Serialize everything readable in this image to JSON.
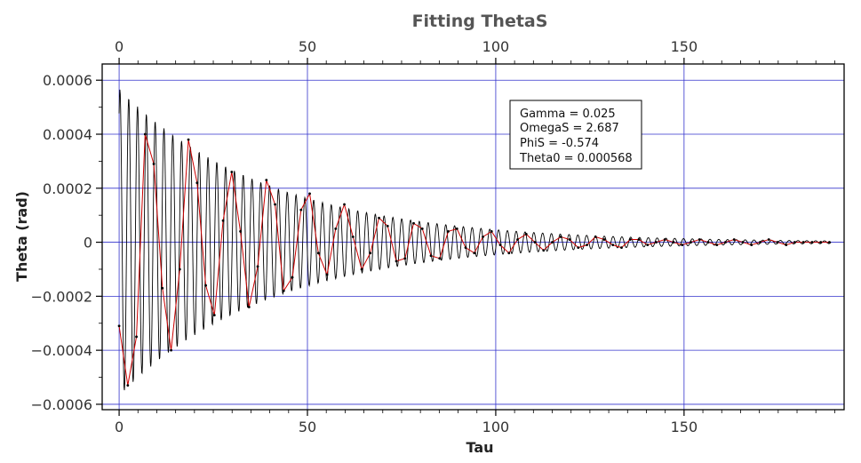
{
  "chart_data": {
    "type": "line",
    "title": "Fitting ThetaS",
    "xlabel": "Tau",
    "ylabel": "Theta (rad)",
    "xlim": [
      -4.5,
      192.5
    ],
    "ylim": [
      -0.00062,
      0.00066
    ],
    "x_ticks": [
      0,
      50,
      100,
      150
    ],
    "x_tick_labels": [
      "0",
      "50",
      "100",
      "150"
    ],
    "y_ticks": [
      -0.0006,
      -0.0004,
      -0.0002,
      0,
      0.0002,
      0.0004,
      0.0006
    ],
    "y_tick_labels": [
      "−0.0006",
      "−0.0004",
      "−0.0002",
      "0",
      "0.0002",
      "0.0004",
      "0.0006"
    ],
    "grid": true,
    "legend_position": "top-right",
    "annotation_lines": [
      "Gamma = 0.025",
      "OmegaS = 2.687",
      "PhiS = -0.574",
      "Theta0 = 0.000568"
    ],
    "fit_params": {
      "gamma": 0.025,
      "omega": 2.687,
      "phi": -0.574,
      "theta0": 0.000568,
      "x_start": 0,
      "x_end": 189
    },
    "series": [
      {
        "role": "fit",
        "color": "#000000",
        "sample_step": 0.1
      },
      {
        "role": "data",
        "color": "#cc0000",
        "x": [
          0,
          2.3,
          4.6,
          6.9,
          9.2,
          11.5,
          13.8,
          16.1,
          18.4,
          20.7,
          23,
          25.3,
          27.6,
          29.9,
          32.2,
          34.5,
          36.8,
          39.1,
          41.4,
          43.7,
          46,
          48.3,
          50.6,
          52.9,
          55.2,
          57.5,
          59.8,
          62.1,
          64.4,
          66.7,
          69,
          71.3,
          73.6,
          75.9,
          78.2,
          80.5,
          82.8,
          85.1,
          87.4,
          89.7,
          92,
          94.3,
          96.6,
          98.9,
          101.2,
          103.5,
          105.8,
          108.1,
          110.4,
          112.7,
          115,
          117.3,
          119.6,
          121.9,
          124.2,
          126.5,
          128.8,
          131.1,
          133.4,
          135.7,
          138,
          140.3,
          142.6,
          144.9,
          147.2,
          149.5,
          151.8,
          154.1,
          156.4,
          158.7,
          161,
          163.3,
          165.6,
          167.9,
          170.2,
          172.5,
          174.8,
          177.1,
          179.4,
          181.7,
          184,
          186.3,
          188.6
        ],
        "y": [
          -0.00031,
          -0.00053,
          -0.00035,
          0.0004,
          0.00029,
          -0.00017,
          -0.0004,
          -0.0001,
          0.00038,
          0.00022,
          -0.00016,
          -0.00027,
          8e-05,
          0.00026,
          4e-05,
          -0.00024,
          -9e-05,
          0.00023,
          0.00014,
          -0.00018,
          -0.00013,
          0.00012,
          0.00018,
          -4e-05,
          -0.00012,
          5e-05,
          0.00014,
          2e-05,
          -0.0001,
          -4e-05,
          9e-05,
          6e-05,
          -7e-05,
          -6e-05,
          7e-05,
          5e-05,
          -5e-05,
          -6e-05,
          4e-05,
          5e-05,
          -2e-05,
          -4e-05,
          2e-05,
          4e-05,
          -1e-05,
          -4e-05,
          1e-05,
          3e-05,
          0.0,
          -3e-05,
          0.0,
          2e-05,
          1e-05,
          -2e-05,
          -1e-05,
          2e-05,
          1e-05,
          -1e-05,
          -2e-05,
          1e-05,
          1e-05,
          -1e-05,
          0.0,
          1e-05,
          0.0,
          -1e-05,
          0.0,
          1e-05,
          0.0,
          -1e-05,
          0.0,
          1e-05,
          0.0,
          -1e-05,
          0.0,
          1e-05,
          0.0,
          -1e-05,
          0.0,
          0.0,
          0.0,
          0.0,
          0.0
        ]
      }
    ]
  }
}
